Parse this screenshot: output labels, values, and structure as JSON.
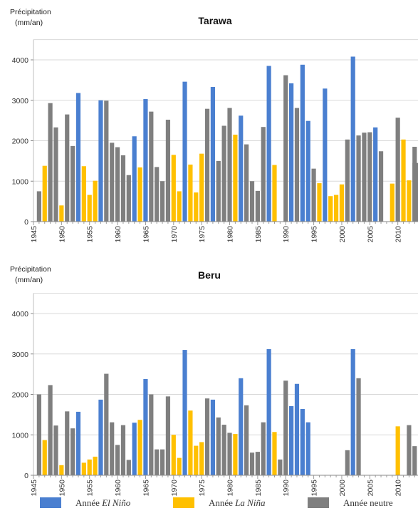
{
  "colors": {
    "el_nino": "#4a7fd0",
    "la_nina": "#ffc000",
    "neutral": "#7f7f7f"
  },
  "legend": {
    "el_nino_prefix": "Année ",
    "el_nino_name": "El Niño",
    "la_nina_prefix": "Année ",
    "la_nina_name": "La Niña",
    "neutral": "Année neutre"
  },
  "chart_data": [
    {
      "type": "bar",
      "title": "Tarawa",
      "ylabel_line1": "Précipitation",
      "ylabel_line2": "(mm/an)",
      "ylim": [
        0,
        4500
      ],
      "yticks": [
        0,
        1000,
        2000,
        3000,
        4000
      ],
      "xticks": [
        1945,
        1950,
        1955,
        1960,
        1965,
        1970,
        1975,
        1980,
        1985,
        1990,
        1995,
        2000,
        2005,
        2010
      ],
      "grid": true,
      "x": [
        1946,
        1947,
        1948,
        1949,
        1950,
        1951,
        1952,
        1953,
        1954,
        1955,
        1956,
        1957,
        1958,
        1959,
        1960,
        1961,
        1962,
        1963,
        1964,
        1965,
        1966,
        1967,
        1968,
        1969,
        1970,
        1971,
        1972,
        1973,
        1974,
        1975,
        1976,
        1977,
        1978,
        1979,
        1980,
        1981,
        1982,
        1983,
        1984,
        1985,
        1986,
        1987,
        1988,
        1990,
        1991,
        1992,
        1993,
        1994,
        1995,
        1996,
        1997,
        1998,
        1999,
        2000,
        2001,
        2002,
        2003,
        2004,
        2005,
        2006,
        2007,
        2009,
        2010,
        2011,
        2012,
        2013
      ],
      "values": [
        750,
        1380,
        2930,
        2330,
        400,
        2650,
        1870,
        3180,
        1370,
        660,
        1010,
        3000,
        2990,
        1950,
        1840,
        1640,
        1150,
        2110,
        1340,
        3030,
        2720,
        1350,
        1000,
        2520,
        1650,
        750,
        3460,
        1410,
        720,
        1680,
        2790,
        3330,
        1500,
        2370,
        2810,
        2150,
        2620,
        1910,
        1000,
        760,
        2340,
        3850,
        1400,
        3620,
        3420,
        2810,
        3880,
        2490,
        1310,
        950,
        3290,
        630,
        660,
        920,
        2030,
        4080,
        2130,
        2200,
        2210,
        2330,
        1740,
        940,
        2570,
        2030,
        1020,
        1850
      ],
      "categories_enso": [
        "n",
        "a",
        "n",
        "n",
        "a",
        "n",
        "n",
        "e",
        "a",
        "a",
        "a",
        "e",
        "n",
        "n",
        "n",
        "n",
        "n",
        "e",
        "a",
        "e",
        "n",
        "n",
        "n",
        "n",
        "a",
        "a",
        "e",
        "a",
        "a",
        "a",
        "n",
        "e",
        "n",
        "n",
        "n",
        "a",
        "e",
        "n",
        "n",
        "n",
        "n",
        "e",
        "a",
        "n",
        "e",
        "n",
        "e",
        "e",
        "n",
        "a",
        "e",
        "a",
        "a",
        "a",
        "n",
        "e",
        "n",
        "n",
        "n",
        "e",
        "n",
        "a",
        "n",
        "a",
        "a",
        "n"
      ],
      "extra": {
        "x": 2013,
        "value": 1450
      }
    },
    {
      "type": "bar",
      "title": "Beru",
      "ylabel_line1": "Précipitation",
      "ylabel_line2": "(mm/an)",
      "ylim": [
        0,
        4500
      ],
      "yticks": [
        0,
        1000,
        2000,
        3000,
        4000
      ],
      "xticks": [
        1945,
        1950,
        1955,
        1960,
        1965,
        1970,
        1975,
        1980,
        1985,
        1990,
        1995,
        2000,
        2005,
        2010
      ],
      "grid": true,
      "x": [
        1946,
        1947,
        1948,
        1949,
        1950,
        1951,
        1952,
        1953,
        1954,
        1955,
        1956,
        1957,
        1958,
        1959,
        1960,
        1961,
        1962,
        1963,
        1964,
        1965,
        1966,
        1967,
        1968,
        1969,
        1970,
        1971,
        1972,
        1973,
        1974,
        1975,
        1976,
        1977,
        1978,
        1979,
        1980,
        1981,
        1982,
        1983,
        1984,
        1985,
        1986,
        1987,
        1988,
        1989,
        1990,
        1991,
        1992,
        1993,
        1994,
        2001,
        2002,
        2003,
        2010,
        2012,
        2013
      ],
      "values": [
        2000,
        870,
        2230,
        1230,
        250,
        1580,
        1160,
        1570,
        310,
        390,
        460,
        1870,
        2510,
        1310,
        750,
        1240,
        380,
        1300,
        1370,
        2380,
        2000,
        640,
        640,
        1950,
        1000,
        430,
        3100,
        1600,
        730,
        820,
        1900,
        1870,
        1430,
        1250,
        1050,
        1020,
        2400,
        1730,
        560,
        580,
        1310,
        3120,
        1070,
        390,
        2340,
        1710,
        2260,
        1640,
        1310,
        620,
        3120,
        2400,
        1210,
        1240,
        720
      ],
      "categories_enso": [
        "n",
        "a",
        "n",
        "n",
        "a",
        "n",
        "n",
        "e",
        "a",
        "a",
        "a",
        "e",
        "n",
        "n",
        "n",
        "n",
        "n",
        "e",
        "a",
        "e",
        "n",
        "n",
        "n",
        "n",
        "a",
        "a",
        "e",
        "a",
        "a",
        "a",
        "n",
        "e",
        "n",
        "n",
        "n",
        "a",
        "e",
        "n",
        "n",
        "n",
        "n",
        "e",
        "a",
        "n",
        "n",
        "e",
        "e",
        "e",
        "e",
        "n",
        "e",
        "n",
        "a",
        "n",
        "n"
      ]
    }
  ]
}
